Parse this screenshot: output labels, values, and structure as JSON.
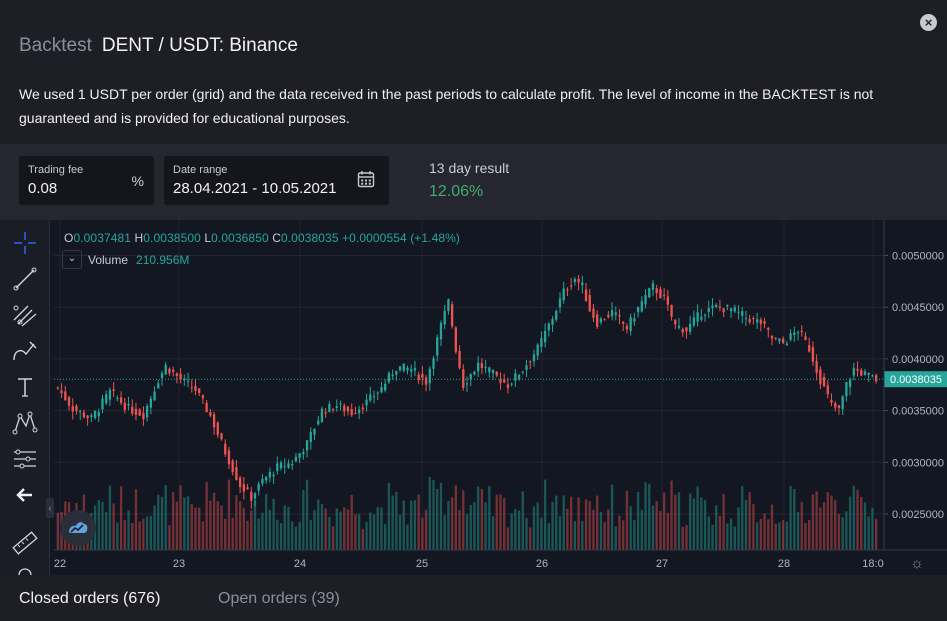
{
  "header": {
    "title_prefix": "Backtest",
    "title_pair": "DENT / USDT: Binance",
    "close_label": "×"
  },
  "disclaimer": "We used 1 USDT per order (grid) and the data received in the past periods to calculate profit. The level of income in the BACKTEST is not guaranteed and is provided for educational purposes.",
  "controls": {
    "trading_fee": {
      "label": "Trading fee",
      "value": "0.08",
      "suffix": "%"
    },
    "date_range": {
      "label": "Date range",
      "value": "28.04.2021 - 10.05.2021"
    },
    "result": {
      "label": "13 day result",
      "value": "12.06%"
    }
  },
  "chart": {
    "ohlc": {
      "o_label": "O",
      "o": "0.0037481",
      "h_label": "H",
      "h": "0.0038500",
      "l_label": "L",
      "l": "0.0036850",
      "c_label": "C",
      "c": "0.0038035",
      "change": "+0.0000554 (+1.48%)"
    },
    "volume": {
      "label": "Volume",
      "value": "210.956M"
    },
    "last_price": "0.0038035",
    "y_ticks": [
      "0.0050000",
      "0.0045000",
      "0.0040000",
      "0.0035000",
      "0.0030000",
      "0.0025000"
    ],
    "x_ticks": [
      "22",
      "23",
      "24",
      "25",
      "26",
      "27",
      "28",
      "18:0"
    ],
    "colors": {
      "up": "#26a69a",
      "down": "#ef5350",
      "price_line": "#26a69a"
    }
  },
  "chart_data": {
    "type": "candlestick",
    "y_range": [
      0.0022,
      0.00515
    ],
    "price_anchors": [
      [
        0,
        0.00372
      ],
      [
        4,
        0.00352
      ],
      [
        9,
        0.00342
      ],
      [
        14,
        0.00368
      ],
      [
        19,
        0.00352
      ],
      [
        23,
        0.00346
      ],
      [
        27,
        0.0038
      ],
      [
        29,
        0.00393
      ],
      [
        33,
        0.0038
      ],
      [
        37,
        0.0037
      ],
      [
        41,
        0.00345
      ],
      [
        45,
        0.0031
      ],
      [
        49,
        0.00278
      ],
      [
        52,
        0.00266
      ],
      [
        55,
        0.00282
      ],
      [
        59,
        0.00295
      ],
      [
        63,
        0.003
      ],
      [
        67,
        0.00318
      ],
      [
        71,
        0.0035
      ],
      [
        75,
        0.00355
      ],
      [
        79,
        0.00348
      ],
      [
        83,
        0.00358
      ],
      [
        87,
        0.00372
      ],
      [
        91,
        0.00392
      ],
      [
        95,
        0.0039
      ],
      [
        99,
        0.00378
      ],
      [
        103,
        0.00432
      ],
      [
        105,
        0.00455
      ],
      [
        107,
        0.0041
      ],
      [
        109,
        0.00375
      ],
      [
        113,
        0.00395
      ],
      [
        117,
        0.00385
      ],
      [
        121,
        0.00375
      ],
      [
        125,
        0.0039
      ],
      [
        129,
        0.0041
      ],
      [
        133,
        0.0044
      ],
      [
        136,
        0.00465
      ],
      [
        139,
        0.00478
      ],
      [
        141,
        0.0047
      ],
      [
        143,
        0.00448
      ],
      [
        145,
        0.00435
      ],
      [
        149,
        0.00445
      ],
      [
        153,
        0.0043
      ],
      [
        157,
        0.00455
      ],
      [
        160,
        0.0047
      ],
      [
        163,
        0.00458
      ],
      [
        166,
        0.00432
      ],
      [
        169,
        0.00428
      ],
      [
        173,
        0.00445
      ],
      [
        177,
        0.0045
      ],
      [
        181,
        0.00448
      ],
      [
        185,
        0.0044
      ],
      [
        189,
        0.00435
      ],
      [
        192,
        0.0042
      ],
      [
        195,
        0.00415
      ],
      [
        199,
        0.00428
      ],
      [
        202,
        0.0041
      ],
      [
        205,
        0.0038
      ],
      [
        208,
        0.00355
      ],
      [
        210,
        0.0035
      ],
      [
        212,
        0.00375
      ],
      [
        214,
        0.0039
      ],
      [
        217,
        0.00385
      ],
      [
        220,
        0.0038
      ]
    ],
    "candle_count": 221,
    "volume_max": 0.93
  }
}
